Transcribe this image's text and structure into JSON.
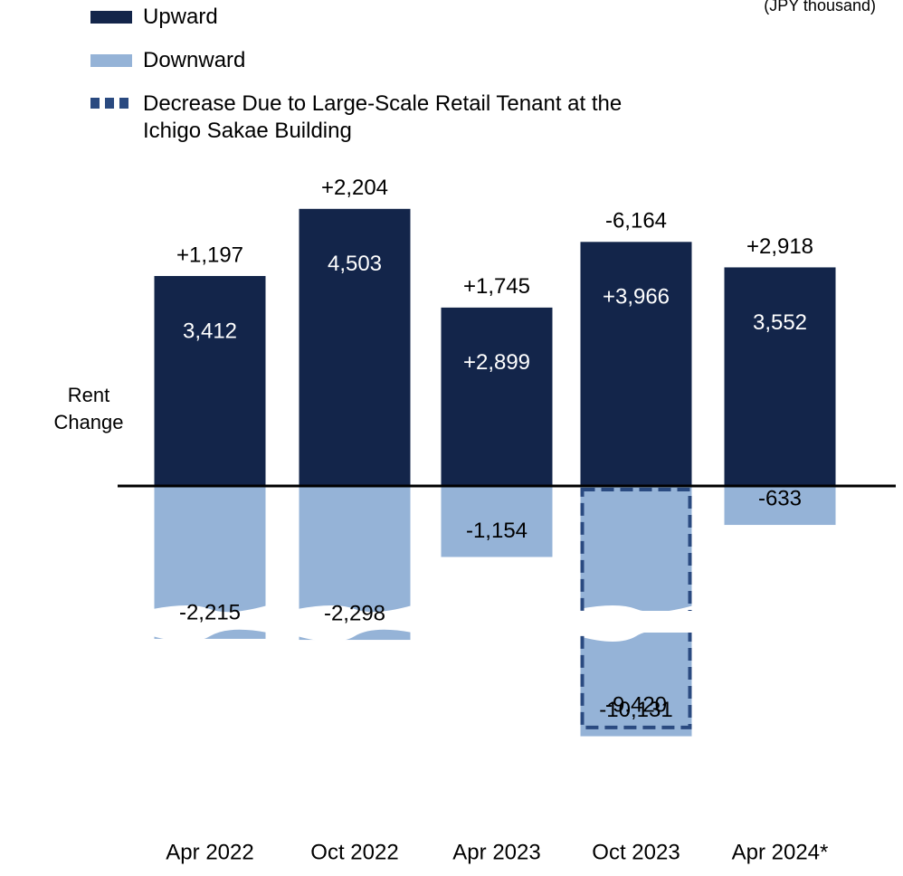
{
  "chart_data": {
    "type": "bar",
    "unit_label": "(JPY thousand)",
    "y_label": "Rent Change",
    "categories": [
      "Apr 2022",
      "Oct 2022",
      "Apr 2023",
      "Oct 2023",
      "Apr 2024*"
    ],
    "series": [
      {
        "name": "Upward",
        "color": "#13254a",
        "values": [
          3412,
          4503,
          2899,
          3966,
          3552
        ],
        "value_labels": [
          "3,412",
          "4,503",
          "+2,899",
          "+3,966",
          "3,552"
        ]
      },
      {
        "name": "Downward",
        "color": "#95b3d7",
        "values": [
          -2215,
          -2298,
          -1154,
          -10131,
          -633
        ],
        "value_labels": [
          "-2,215",
          "-2,298",
          "-1,154",
          "-10,131",
          "-633"
        ]
      },
      {
        "name": "Decrease Due to Large-Scale Retail Tenant at the Ichigo Sakae Building",
        "color": "#2a4a80",
        "dashed": true,
        "values": [
          null,
          null,
          null,
          -9420,
          null
        ],
        "value_labels": [
          null,
          null,
          null,
          "-9,420",
          null
        ]
      }
    ],
    "net_change": {
      "values": [
        1197,
        2204,
        1745,
        -6164,
        2918
      ],
      "value_labels": [
        "+1,197",
        "+2,204",
        "+1,745",
        "-6,164",
        "+2,918"
      ]
    }
  }
}
